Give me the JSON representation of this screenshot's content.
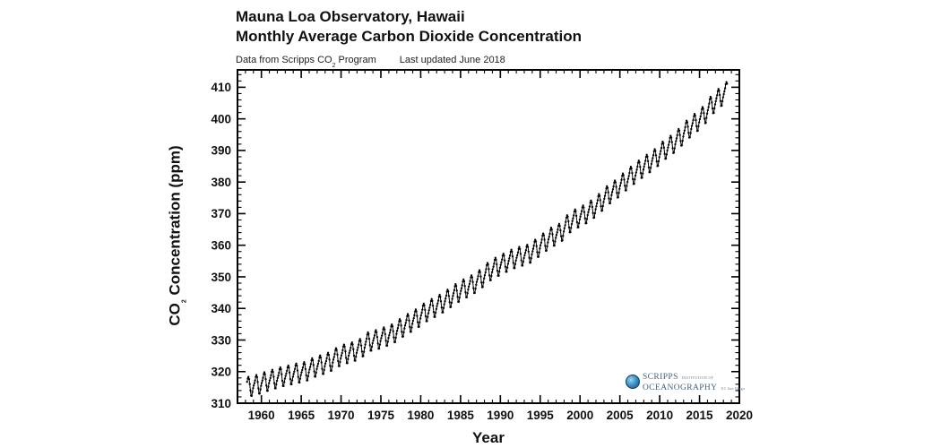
{
  "header": {
    "title_line1": "Mauna Loa Observatory, Hawaii",
    "title_line2": "Monthly Average Carbon Dioxide Concentration",
    "subtitle_left_pre": "Data from Scripps CO",
    "subtitle_left_sub": "2",
    "subtitle_left_post": " Program",
    "subtitle_right": "Last updated June 2018"
  },
  "axes": {
    "ylabel_pre": "CO",
    "ylabel_sub": "2",
    "ylabel_post": " Concentration (ppm)",
    "xlabel": "Year"
  },
  "logo": {
    "line1": "SCRIPPS",
    "line1_small": "INSTITUTION OF",
    "line2": "OCEANOGRAPHY",
    "line2_small": "UC San Diego"
  },
  "chart_data": {
    "type": "line",
    "title": "Mauna Loa Observatory, Hawaii",
    "subtitle": "Monthly Average Carbon Dioxide Concentration",
    "source_note": "Data from Scripps CO2 Program — Last updated June 2018",
    "xlabel": "Year",
    "ylabel": "CO2 Concentration (ppm)",
    "xlim": [
      1957,
      2020
    ],
    "ylim": [
      310,
      415.5
    ],
    "x_major_ticks": [
      1960,
      1965,
      1970,
      1975,
      1980,
      1985,
      1990,
      1995,
      2000,
      2005,
      2010,
      2015,
      2020
    ],
    "x_minor_step_years": 1,
    "y_major_ticks": [
      310,
      320,
      330,
      340,
      350,
      360,
      370,
      380,
      390,
      400,
      410
    ],
    "y_minor_step_ppm": 2,
    "grid": false,
    "legend": "none",
    "marker": "dot",
    "line_color": "#000000",
    "series_name": "Monthly average CO2 (ppm)",
    "data_start": {
      "year": 1958,
      "month": 3
    },
    "data_end": {
      "year": 2018,
      "month": 6
    },
    "seasonal_cycle_ppm_by_month": [
      -0.1,
      0.6,
      1.4,
      2.5,
      3.0,
      2.3,
      0.7,
      -1.4,
      -3.1,
      -3.2,
      -2.0,
      -0.9
    ],
    "annual_means_ppm": [
      [
        1958,
        315.34
      ],
      [
        1959,
        315.98
      ],
      [
        1960,
        316.91
      ],
      [
        1961,
        317.64
      ],
      [
        1962,
        318.45
      ],
      [
        1963,
        318.99
      ],
      [
        1964,
        319.62
      ],
      [
        1965,
        320.04
      ],
      [
        1966,
        321.37
      ],
      [
        1967,
        322.18
      ],
      [
        1968,
        323.05
      ],
      [
        1969,
        324.62
      ],
      [
        1970,
        325.68
      ],
      [
        1971,
        326.32
      ],
      [
        1972,
        327.46
      ],
      [
        1973,
        329.68
      ],
      [
        1974,
        330.19
      ],
      [
        1975,
        331.12
      ],
      [
        1976,
        332.03
      ],
      [
        1977,
        333.84
      ],
      [
        1978,
        335.41
      ],
      [
        1979,
        336.84
      ],
      [
        1980,
        338.76
      ],
      [
        1981,
        340.12
      ],
      [
        1982,
        341.48
      ],
      [
        1983,
        343.15
      ],
      [
        1984,
        344.87
      ],
      [
        1985,
        346.35
      ],
      [
        1986,
        347.61
      ],
      [
        1987,
        349.31
      ],
      [
        1988,
        351.69
      ],
      [
        1989,
        353.2
      ],
      [
        1990,
        354.45
      ],
      [
        1991,
        355.7
      ],
      [
        1992,
        356.54
      ],
      [
        1993,
        357.21
      ],
      [
        1994,
        358.96
      ],
      [
        1995,
        360.97
      ],
      [
        1996,
        362.74
      ],
      [
        1997,
        363.88
      ],
      [
        1998,
        366.84
      ],
      [
        1999,
        368.54
      ],
      [
        2000,
        369.71
      ],
      [
        2001,
        371.32
      ],
      [
        2002,
        373.45
      ],
      [
        2003,
        375.98
      ],
      [
        2004,
        377.7
      ],
      [
        2005,
        379.98
      ],
      [
        2006,
        382.09
      ],
      [
        2007,
        384.02
      ],
      [
        2008,
        385.83
      ],
      [
        2009,
        387.64
      ],
      [
        2010,
        390.1
      ],
      [
        2011,
        391.85
      ],
      [
        2012,
        394.06
      ],
      [
        2013,
        396.74
      ],
      [
        2014,
        398.81
      ],
      [
        2015,
        401.01
      ],
      [
        2016,
        404.41
      ],
      [
        2017,
        406.76
      ],
      [
        2018,
        408.9
      ]
    ]
  }
}
